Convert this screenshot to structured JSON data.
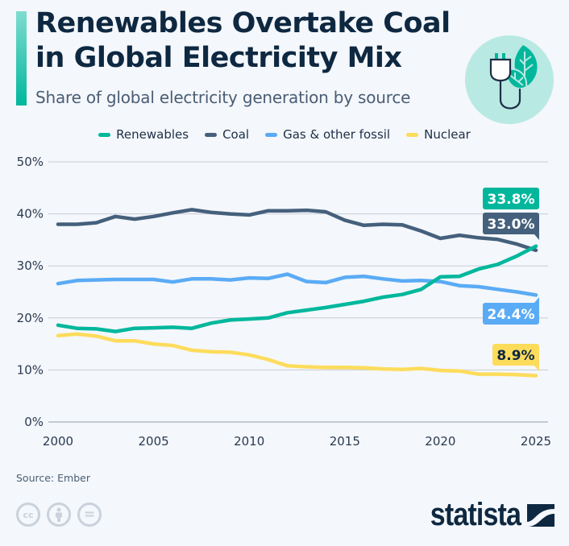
{
  "header": {
    "title_line1": "Renewables Overtake Coal",
    "title_line2": "in Global Electricity Mix",
    "subtitle": "Share of global electricity generation by source",
    "icon": "plug-leaf-icon"
  },
  "colors": {
    "renewables": "#00b79c",
    "coal": "#45607c",
    "gas": "#5aabf5",
    "nuclear": "#fddc5c",
    "title": "#0e2841",
    "accent": "#00b79c"
  },
  "chart_data": {
    "type": "line",
    "title": "Renewables Overtake Coal in Global Electricity Mix",
    "subtitle": "Share of global electricity generation by source",
    "xlabel": "",
    "ylabel": "",
    "x": [
      2000,
      2001,
      2002,
      2003,
      2004,
      2005,
      2006,
      2007,
      2008,
      2009,
      2010,
      2011,
      2012,
      2013,
      2014,
      2015,
      2016,
      2017,
      2018,
      2019,
      2020,
      2021,
      2022,
      2023,
      2024,
      2025
    ],
    "x_ticks": [
      2000,
      2005,
      2010,
      2015,
      2020,
      2025
    ],
    "x_tick_labels": [
      "2000",
      "2005",
      "2010",
      "2015",
      "2020",
      "2025"
    ],
    "xlim": [
      2000,
      2025
    ],
    "ylim": [
      0,
      50
    ],
    "y_ticks": [
      0,
      10,
      20,
      30,
      40,
      50
    ],
    "y_tick_labels": [
      "0%",
      "10%",
      "20%",
      "30%",
      "40%",
      "50%"
    ],
    "grid": true,
    "legend_position": "top-center",
    "series": [
      {
        "key": "renewables",
        "name": "Renewables",
        "color": "#00b79c",
        "values": [
          18.6,
          18.0,
          17.9,
          17.4,
          18.0,
          18.1,
          18.2,
          18.0,
          19.0,
          19.6,
          19.8,
          20.0,
          21.0,
          21.5,
          22.0,
          22.6,
          23.2,
          24.0,
          24.5,
          25.5,
          27.9,
          28.0,
          29.4,
          30.3,
          31.9,
          33.8
        ],
        "end_label": "33.8%"
      },
      {
        "key": "coal",
        "name": "Coal",
        "color": "#45607c",
        "values": [
          38.0,
          38.0,
          38.3,
          39.5,
          39.0,
          39.5,
          40.2,
          40.8,
          40.3,
          40.0,
          39.8,
          40.6,
          40.6,
          40.7,
          40.4,
          38.8,
          37.8,
          38.0,
          37.9,
          36.7,
          35.3,
          35.9,
          35.4,
          35.1,
          34.2,
          33.0
        ],
        "end_label": "33.0%"
      },
      {
        "key": "gas",
        "name": "Gas & other fossil",
        "color": "#5aabf5",
        "values": [
          26.6,
          27.2,
          27.3,
          27.4,
          27.4,
          27.4,
          26.9,
          27.5,
          27.5,
          27.3,
          27.7,
          27.6,
          28.4,
          27.0,
          26.8,
          27.8,
          28.0,
          27.5,
          27.1,
          27.2,
          27.0,
          26.2,
          26.0,
          25.5,
          25.0,
          24.4
        ],
        "end_label": "24.4%"
      },
      {
        "key": "nuclear",
        "name": "Nuclear",
        "color": "#fddc5c",
        "values": [
          16.6,
          16.9,
          16.5,
          15.6,
          15.6,
          15.0,
          14.7,
          13.8,
          13.5,
          13.4,
          12.9,
          12.0,
          10.8,
          10.6,
          10.5,
          10.5,
          10.4,
          10.2,
          10.1,
          10.3,
          9.9,
          9.8,
          9.2,
          9.2,
          9.1,
          8.9
        ],
        "end_label": "8.9%"
      }
    ]
  },
  "footer": {
    "source": "Source: Ember",
    "license_icons": [
      "cc-icon",
      "attribution-icon",
      "no-derivatives-icon"
    ],
    "cc_text": "cc",
    "nd_text": "=",
    "brand": "statista"
  }
}
